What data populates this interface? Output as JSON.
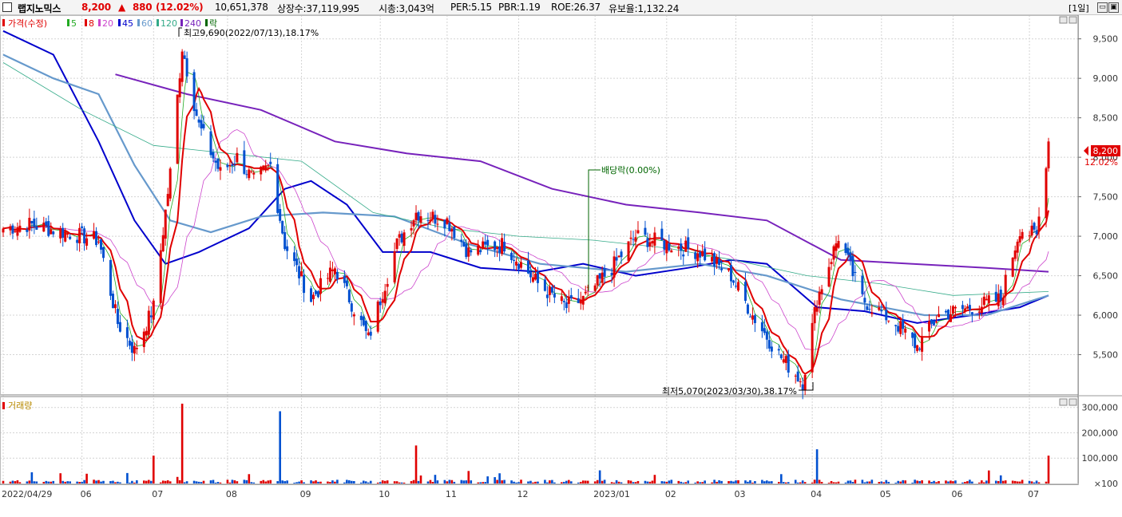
{
  "header": {
    "stock_name": "랩지노믹스",
    "price": "8,200",
    "change_arrow": "▲",
    "change": "880",
    "change_pct": "(12.02%)",
    "volume": "10,651,378",
    "listed_shares": "상장수:37,119,995",
    "market_cap": "시총:3,043억",
    "per": "PER:5.15",
    "pbr": "PBR:1.19",
    "roe": "ROE:26.37",
    "retention": "유보율:1,132.24",
    "period": "[1일]",
    "window_buttons": [
      "▭",
      "▣",
      "✕"
    ]
  },
  "price_legend": {
    "items": [
      {
        "label": "가격(수정)",
        "color": "#e00000"
      },
      {
        "label": "5",
        "color": "#22aa22"
      },
      {
        "label": "8",
        "color": "#e00000"
      },
      {
        "label": "20",
        "color": "#cc44cc"
      },
      {
        "label": "45",
        "color": "#0000cc"
      },
      {
        "label": "60",
        "color": "#6699cc"
      },
      {
        "label": "120",
        "color": "#33aa88"
      },
      {
        "label": "240",
        "color": "#7722bb"
      },
      {
        "label": "락",
        "color": "#006600"
      }
    ]
  },
  "annotations": {
    "high": "최고9,690(2022/07/13),18.17%",
    "low": "최저5,070(2023/03/30),38.17%",
    "dividend": "배당락(0.00%)"
  },
  "volume_legend": "거래량",
  "price_marker": {
    "value": "8,200",
    "pct": "12.02%"
  },
  "colors": {
    "up": "#e00000",
    "down": "#0050d0",
    "ma5": "#22aa22",
    "ma8": "#e00000",
    "ma20": "#cc44cc",
    "ma45": "#0000cc",
    "ma60": "#6699cc",
    "ma120": "#33aa88",
    "ma240": "#7722bb",
    "dividend": "#006600",
    "grid": "#d4d4d4"
  },
  "chart_data": {
    "type": "candlestick",
    "price_axis": {
      "ticks": [
        5500,
        6000,
        6500,
        7000,
        7500,
        8000,
        8500,
        9000,
        9500
      ],
      "tick_labels": [
        "5,500",
        "6,000",
        "6,500",
        "7,000",
        "7,500",
        "8,000",
        "8,500",
        "9,000",
        "9,500"
      ],
      "range": [
        5000,
        9800
      ]
    },
    "volume_axis": {
      "ticks": [
        100,
        100000,
        200000,
        300000
      ],
      "tick_labels": [
        "×100",
        "100,000",
        "200,000",
        "300,000"
      ],
      "range": [
        0,
        340000
      ]
    },
    "date_labels": [
      "2022/04/29",
      "06",
      "07",
      "08",
      "09",
      "10",
      "11",
      "12",
      "2023/01",
      "02",
      "03",
      "04",
      "05",
      "06",
      "07"
    ],
    "close_anchors": [
      {
        "date": "2022/04/29",
        "close": 7100
      },
      {
        "date": "2022/05/10",
        "close": 7150
      },
      {
        "date": "2022/05/25",
        "close": 7050
      },
      {
        "date": "2022/06/08",
        "close": 6950
      },
      {
        "date": "2022/06/16",
        "close": 5900
      },
      {
        "date": "2022/06/23",
        "close": 5550
      },
      {
        "date": "2022/07/01",
        "close": 6100
      },
      {
        "date": "2022/07/08",
        "close": 7800
      },
      {
        "date": "2022/07/13",
        "close": 9400
      },
      {
        "date": "2022/07/20",
        "close": 8400
      },
      {
        "date": "2022/07/29",
        "close": 7800
      },
      {
        "date": "2022/08/05",
        "close": 8000
      },
      {
        "date": "2022/08/12",
        "close": 7700
      },
      {
        "date": "2022/08/19",
        "close": 7900
      },
      {
        "date": "2022/08/25",
        "close": 6900
      },
      {
        "date": "2022/09/05",
        "close": 6200
      },
      {
        "date": "2022/09/15",
        "close": 6600
      },
      {
        "date": "2022/09/29",
        "close": 5700
      },
      {
        "date": "2022/10/11",
        "close": 6900
      },
      {
        "date": "2022/10/19",
        "close": 7300
      },
      {
        "date": "2022/11/01",
        "close": 7200
      },
      {
        "date": "2022/11/10",
        "close": 6800
      },
      {
        "date": "2022/11/25",
        "close": 6900
      },
      {
        "date": "2022/12/09",
        "close": 6400
      },
      {
        "date": "2022/12/21",
        "close": 6100
      },
      {
        "date": "2022/12/28",
        "close": 6200
      },
      {
        "date": "2023/01/09",
        "close": 6600
      },
      {
        "date": "2023/01/19",
        "close": 7000
      },
      {
        "date": "2023/02/01",
        "close": 6900
      },
      {
        "date": "2023/02/15",
        "close": 6800
      },
      {
        "date": "2023/02/28",
        "close": 6500
      },
      {
        "date": "2023/03/09",
        "close": 6000
      },
      {
        "date": "2023/03/20",
        "close": 5500
      },
      {
        "date": "2023/03/30",
        "close": 5150
      },
      {
        "date": "2023/04/05",
        "close": 6200
      },
      {
        "date": "2023/04/14",
        "close": 7000
      },
      {
        "date": "2023/04/24",
        "close": 6200
      },
      {
        "date": "2023/05/08",
        "close": 5900
      },
      {
        "date": "2023/05/17",
        "close": 5600
      },
      {
        "date": "2023/05/26",
        "close": 6000
      },
      {
        "date": "2023/06/09",
        "close": 6100
      },
      {
        "date": "2023/06/21",
        "close": 6200
      },
      {
        "date": "2023/06/29",
        "close": 7100
      },
      {
        "date": "2023/07/06",
        "close": 7000
      },
      {
        "date": "2023/07/11",
        "close": 8200
      }
    ],
    "moving_averages": [
      {
        "name": "45",
        "points": [
          {
            "date": "2022/04/29",
            "value": 9600
          },
          {
            "date": "2022/05/20",
            "value": 9300
          },
          {
            "date": "2022/06/08",
            "value": 8200
          },
          {
            "date": "2022/06/23",
            "value": 7200
          },
          {
            "date": "2022/07/06",
            "value": 6650
          },
          {
            "date": "2022/07/20",
            "value": 6800
          },
          {
            "date": "2022/08/10",
            "value": 7100
          },
          {
            "date": "2022/08/25",
            "value": 7600
          },
          {
            "date": "2022/09/05",
            "value": 7700
          },
          {
            "date": "2022/09/20",
            "value": 7400
          },
          {
            "date": "2022/10/05",
            "value": 6800
          },
          {
            "date": "2022/10/25",
            "value": 6800
          },
          {
            "date": "2022/11/15",
            "value": 6600
          },
          {
            "date": "2022/12/09",
            "value": 6550
          },
          {
            "date": "2022/12/28",
            "value": 6650
          },
          {
            "date": "2023/01/19",
            "value": 6500
          },
          {
            "date": "2023/02/10",
            "value": 6600
          },
          {
            "date": "2023/02/28",
            "value": 6700
          },
          {
            "date": "2023/03/15",
            "value": 6650
          },
          {
            "date": "2023/04/05",
            "value": 6100
          },
          {
            "date": "2023/04/25",
            "value": 6050
          },
          {
            "date": "2023/05/17",
            "value": 5900
          },
          {
            "date": "2023/06/09",
            "value": 6000
          },
          {
            "date": "2023/06/29",
            "value": 6100
          },
          {
            "date": "2023/07/11",
            "value": 6250
          }
        ]
      },
      {
        "name": "60",
        "points": [
          {
            "date": "2022/04/29",
            "value": 9300
          },
          {
            "date": "2022/05/20",
            "value": 9000
          },
          {
            "date": "2022/06/08",
            "value": 8800
          },
          {
            "date": "2022/06/23",
            "value": 7900
          },
          {
            "date": "2022/07/08",
            "value": 7200
          },
          {
            "date": "2022/07/25",
            "value": 7050
          },
          {
            "date": "2022/08/15",
            "value": 7250
          },
          {
            "date": "2022/09/10",
            "value": 7300
          },
          {
            "date": "2022/10/10",
            "value": 7250
          },
          {
            "date": "2022/11/10",
            "value": 6900
          },
          {
            "date": "2022/12/10",
            "value": 6650
          },
          {
            "date": "2023/01/15",
            "value": 6550
          },
          {
            "date": "2023/02/15",
            "value": 6650
          },
          {
            "date": "2023/03/15",
            "value": 6500
          },
          {
            "date": "2023/04/15",
            "value": 6200
          },
          {
            "date": "2023/05/20",
            "value": 6000
          },
          {
            "date": "2023/06/15",
            "value": 6000
          },
          {
            "date": "2023/07/11",
            "value": 6250
          }
        ]
      },
      {
        "name": "120",
        "points": [
          {
            "date": "2022/04/29",
            "value": 9200
          },
          {
            "date": "2022/06/01",
            "value": 8600
          },
          {
            "date": "2022/07/01",
            "value": 8150
          },
          {
            "date": "2022/08/01",
            "value": 8050
          },
          {
            "date": "2022/09/01",
            "value": 7950
          },
          {
            "date": "2022/10/01",
            "value": 7300
          },
          {
            "date": "2022/11/01",
            "value": 7100
          },
          {
            "date": "2022/12/01",
            "value": 7000
          },
          {
            "date": "2023/01/01",
            "value": 6950
          },
          {
            "date": "2023/02/01",
            "value": 6850
          },
          {
            "date": "2023/03/01",
            "value": 6700
          },
          {
            "date": "2023/04/01",
            "value": 6500
          },
          {
            "date": "2023/05/01",
            "value": 6400
          },
          {
            "date": "2023/06/01",
            "value": 6250
          },
          {
            "date": "2023/07/11",
            "value": 6300
          }
        ]
      },
      {
        "name": "240",
        "points": [
          {
            "date": "2022/06/15",
            "value": 9050
          },
          {
            "date": "2022/07/15",
            "value": 8800
          },
          {
            "date": "2022/08/15",
            "value": 8600
          },
          {
            "date": "2022/09/15",
            "value": 8200
          },
          {
            "date": "2022/10/15",
            "value": 8050
          },
          {
            "date": "2022/11/15",
            "value": 7950
          },
          {
            "date": "2022/12/15",
            "value": 7600
          },
          {
            "date": "2023/01/15",
            "value": 7400
          },
          {
            "date": "2023/02/15",
            "value": 7300
          },
          {
            "date": "2023/03/15",
            "value": 7200
          },
          {
            "date": "2023/04/15",
            "value": 6700
          },
          {
            "date": "2023/05/15",
            "value": 6650
          },
          {
            "date": "2023/06/15",
            "value": 6600
          },
          {
            "date": "2023/07/11",
            "value": 6550
          }
        ]
      }
    ],
    "volume_peaks": [
      {
        "date": "2022/07/13",
        "value": 315000
      },
      {
        "date": "2022/08/23",
        "value": 285000
      },
      {
        "date": "2022/07/01",
        "value": 110000
      },
      {
        "date": "2022/10/19",
        "value": 150000
      },
      {
        "date": "2023/04/05",
        "value": 135000
      },
      {
        "date": "2023/07/11",
        "value": 110000
      }
    ],
    "dividend_date": "2022/12/28",
    "high": {
      "date": "2022/07/13",
      "value": 9690
    },
    "low": {
      "date": "2023/03/30",
      "value": 5070
    }
  }
}
